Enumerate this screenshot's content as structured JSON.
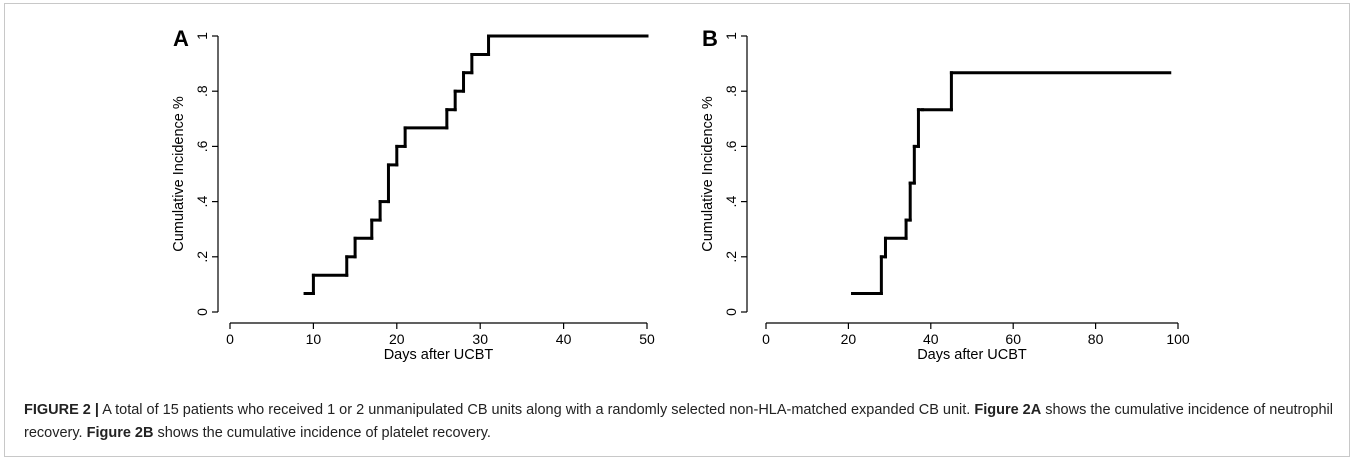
{
  "chart_data": [
    {
      "type": "line",
      "step": "post",
      "panel_label": "A",
      "xlabel": "Days after UCBT",
      "ylabel": "Cumulative Incidence %",
      "xlim": [
        0,
        50
      ],
      "ylim": [
        0,
        1
      ],
      "x_ticks": [
        0,
        10,
        20,
        30,
        40,
        50
      ],
      "x_tick_labels": [
        "0",
        "10",
        "20",
        "30",
        "40",
        "50"
      ],
      "y_ticks": [
        0,
        0.2,
        0.4,
        0.6,
        0.8,
        1
      ],
      "y_tick_labels": [
        "0",
        ".2",
        ".4",
        ".6",
        ".8",
        "1"
      ],
      "grid": false,
      "x": [
        9,
        10,
        14,
        15,
        17,
        18,
        19,
        20,
        21,
        26,
        27,
        28,
        29,
        31,
        50
      ],
      "values": [
        0.067,
        0.133,
        0.2,
        0.267,
        0.333,
        0.4,
        0.533,
        0.6,
        0.667,
        0.733,
        0.8,
        0.867,
        0.933,
        1.0,
        1.0
      ]
    },
    {
      "type": "line",
      "step": "post",
      "panel_label": "B",
      "xlabel": "Days after UCBT",
      "ylabel": "Cumulative Incidence %",
      "xlim": [
        0,
        100
      ],
      "ylim": [
        0,
        1
      ],
      "x_ticks": [
        0,
        20,
        40,
        60,
        80,
        100
      ],
      "x_tick_labels": [
        "0",
        "20",
        "40",
        "60",
        "80",
        "100"
      ],
      "y_ticks": [
        0,
        0.2,
        0.4,
        0.6,
        0.8,
        1
      ],
      "y_tick_labels": [
        "0",
        ".2",
        ".4",
        ".6",
        ".8",
        "1"
      ],
      "grid": false,
      "x": [
        21,
        28,
        29,
        34,
        35,
        36,
        37,
        38,
        45,
        98
      ],
      "values": [
        0.067,
        0.2,
        0.267,
        0.333,
        0.467,
        0.6,
        0.733,
        0.733,
        0.867,
        0.867
      ]
    }
  ],
  "caption": {
    "label": "FIGURE 2 |",
    "text1": " A total of 15 patients who received 1 or 2 unmanipulated CB units along with a randomly selected non-HLA-matched expanded CB unit. ",
    "ref_a": "Figure 2A",
    "text2": " shows the cumulative incidence of neutrophil recovery. ",
    "ref_b": "Figure 2B",
    "text3": " shows the cumulative incidence of platelet recovery."
  }
}
